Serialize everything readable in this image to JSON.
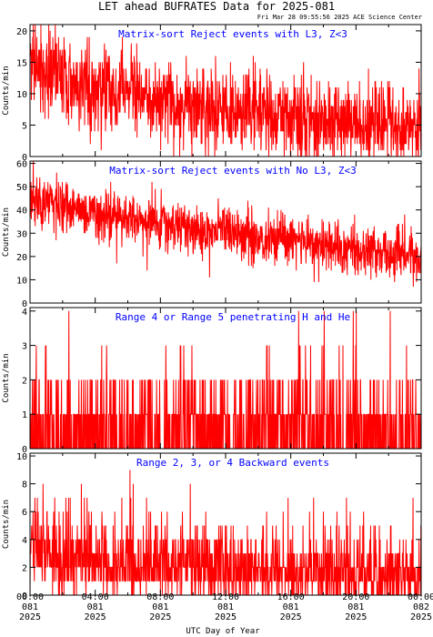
{
  "header": {
    "title": "LET ahead BUFRATES Data for 2025-081",
    "timestamp": "Fri Mar 28 09:55:56 2025 ACE Science Center"
  },
  "x_axis": {
    "label": "UTC Day of Year",
    "ticks": [
      {
        "time": "00:00",
        "doy": "081",
        "year": "2025"
      },
      {
        "time": "04:00",
        "doy": "081",
        "year": "2025"
      },
      {
        "time": "08:00",
        "doy": "081",
        "year": "2025"
      },
      {
        "time": "12:00",
        "doy": "081",
        "year": "2025"
      },
      {
        "time": "16:00",
        "doy": "081",
        "year": "2025"
      },
      {
        "time": "20:00",
        "doy": "081",
        "year": "2025"
      },
      {
        "time": "00:00",
        "doy": "082",
        "year": "2025"
      }
    ]
  },
  "colors": {
    "trace": "#ff0000",
    "panel_title": "#0000ff",
    "axes": "#000000"
  },
  "chart_data": [
    {
      "type": "line",
      "title": "Matrix-sort Reject events with L3, Z<3",
      "ylabel": "Counts/min",
      "ylim": [
        0,
        21
      ],
      "yticks": [
        0,
        5,
        10,
        15,
        20
      ],
      "xlim_hours": [
        0,
        24
      ],
      "trend_hours": [
        0,
        2,
        4,
        6,
        8,
        10,
        12,
        14,
        16,
        18,
        20,
        22,
        24
      ],
      "trend_values": [
        15,
        12.5,
        11,
        10,
        9,
        8,
        7.5,
        7,
        6.5,
        6,
        5.5,
        5,
        5
      ],
      "noise": 3.2,
      "step_minutes": 1,
      "series_name": ""
    },
    {
      "type": "line",
      "title": "Matrix-sort Reject events with No L3, Z<3",
      "ylabel": "Counts/min",
      "ylim": [
        0,
        61
      ],
      "yticks": [
        0,
        10,
        20,
        30,
        40,
        50,
        60
      ],
      "xlim_hours": [
        0,
        24
      ],
      "trend_hours": [
        0,
        2,
        4,
        6,
        8,
        10,
        12,
        14,
        16,
        18,
        20,
        22,
        24
      ],
      "trend_values": [
        45,
        42,
        38,
        36,
        34,
        32,
        30,
        28,
        27,
        25,
        23,
        21,
        20
      ],
      "noise": 5.5,
      "step_minutes": 1,
      "series_name": ""
    },
    {
      "type": "line",
      "title": "Range 4 or Range 5 penetrating H and He",
      "ylabel": "Counts/min",
      "ylim": [
        0,
        4.1
      ],
      "yticks": [
        0,
        1,
        2,
        3,
        4
      ],
      "xlim_hours": [
        0,
        24
      ],
      "discrete_probabilities": {
        "0": 0.55,
        "1": 0.3,
        "2": 0.12,
        "3": 0.025,
        "4": 0.005
      },
      "step_minutes": 1,
      "series_name": ""
    },
    {
      "type": "line",
      "title": "Range 2, 3, or 4 Backward events",
      "ylabel": "Counts/min",
      "ylim": [
        0,
        10.2
      ],
      "yticks": [
        0,
        2,
        4,
        6,
        8,
        10
      ],
      "xlim_hours": [
        0,
        24
      ],
      "trend_hours": [
        0,
        2,
        4,
        6,
        8,
        12,
        16,
        20,
        24
      ],
      "trend_values": [
        3.2,
        2.8,
        2.6,
        2.4,
        2.2,
        2.0,
        1.8,
        1.7,
        1.6
      ],
      "poisson": true,
      "step_minutes": 1,
      "series_name": ""
    }
  ]
}
